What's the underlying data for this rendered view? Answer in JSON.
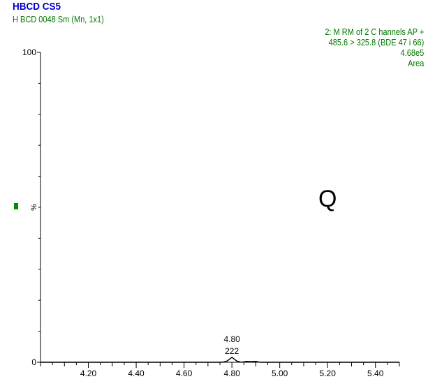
{
  "header": {
    "title": "HBCD CS5",
    "subtitle": "H BCD 0048 Sm (Mn, 1x1)",
    "info_lines": [
      "2: M RM of 2 C hannels AP +",
      "485.6 > 325.8 (BDE  47 i 66)",
      "4.68e5",
      "Area"
    ]
  },
  "annotation": {
    "label": "Q",
    "marker_color": "#008a00"
  },
  "colors": {
    "title": "#0000cc",
    "header_text": "#007a00",
    "axis": "#000000",
    "trace": "#000000"
  },
  "chart_data": {
    "type": "line",
    "title": "HBCD CS5",
    "xlabel": "",
    "ylabel": "%",
    "xlim": [
      4.0,
      5.5
    ],
    "ylim": [
      0,
      100
    ],
    "x_ticks": [
      "4.20",
      "4.40",
      "4.60",
      "4.80",
      "5.00",
      "5.20",
      "5.40"
    ],
    "y_ticks": [
      "0",
      "100"
    ],
    "peak_labels": [
      {
        "rt": "4.80",
        "value": "222",
        "x": 4.8
      }
    ],
    "series": [
      {
        "x": [
          4.0,
          4.7,
          4.76,
          4.78,
          4.79,
          4.8,
          4.81,
          4.82,
          4.84,
          4.86,
          4.88,
          4.9,
          4.92,
          5.0,
          5.5
        ],
        "values": [
          0,
          0,
          0,
          0.4,
          1.0,
          1.6,
          1.0,
          0.4,
          0,
          0.3,
          0.2,
          0.3,
          0,
          0,
          0
        ]
      }
    ]
  }
}
